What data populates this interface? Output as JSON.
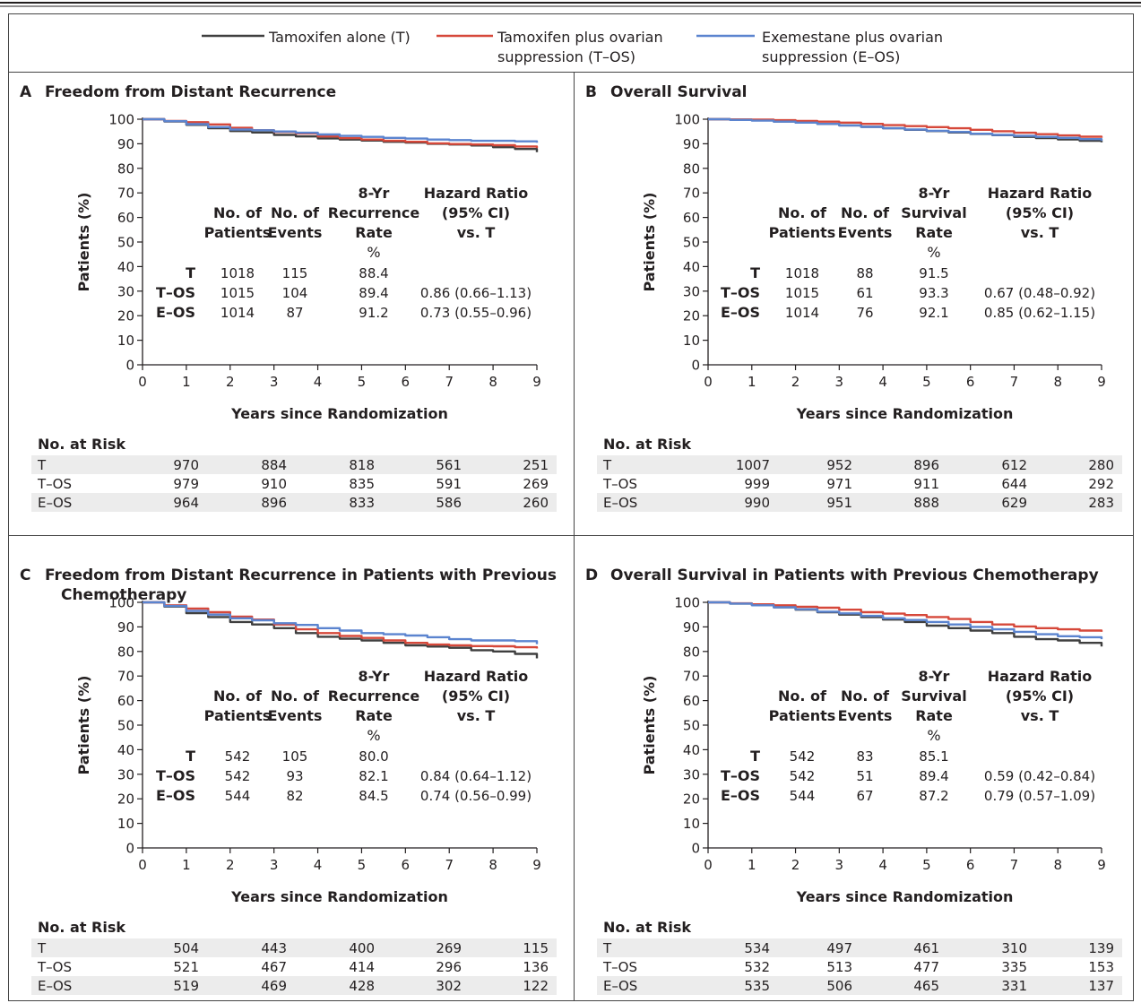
{
  "legend": [
    {
      "key": "T",
      "lines": [
        "Tamoxifen alone (T)"
      ],
      "color": "#3f3f3f"
    },
    {
      "key": "T-OS",
      "lines": [
        "Tamoxifen plus ovarian",
        "suppression (T–OS)"
      ],
      "color": "#d6483a"
    },
    {
      "key": "E-OS",
      "lines": [
        "Exemestane plus ovarian",
        "suppression (E–OS)"
      ],
      "color": "#5b84cf"
    }
  ],
  "chart_data": [
    {
      "type": "line",
      "panel_letter": "A",
      "title_lines": [
        "Freedom from Distant Recurrence"
      ],
      "xlabel": "Years since Randomization",
      "ylabel": "Patients (%)",
      "xlim": [
        0,
        9
      ],
      "ylim": [
        0,
        100
      ],
      "x_ticks": [
        "0",
        "1",
        "2",
        "3",
        "4",
        "5",
        "6",
        "7",
        "8",
        "9"
      ],
      "y_ticks": [
        "0",
        "10",
        "20",
        "30",
        "40",
        "50",
        "60",
        "70",
        "80",
        "90",
        "100"
      ],
      "series": [
        {
          "name": "T",
          "color": "#3f3f3f",
          "x": [
            0,
            0.5,
            1,
            1.5,
            2,
            2.5,
            3,
            3.5,
            4,
            4.5,
            5,
            5.5,
            6,
            6.5,
            7,
            7.5,
            8,
            8.5,
            9
          ],
          "y": [
            100,
            99.1,
            97.7,
            96.3,
            95.2,
            94.6,
            93.6,
            93.0,
            92.2,
            91.7,
            91.3,
            90.8,
            90.5,
            90.0,
            89.7,
            89.3,
            88.6,
            87.9,
            86.6
          ]
        },
        {
          "name": "T-OS",
          "color": "#d6483a",
          "x": [
            0,
            0.5,
            1,
            1.5,
            2,
            2.5,
            3,
            3.5,
            4,
            4.5,
            5,
            5.5,
            6,
            6.5,
            7,
            7.5,
            8,
            8.5,
            9
          ],
          "y": [
            100,
            99.3,
            98.8,
            97.9,
            96.5,
            95.5,
            94.8,
            94.2,
            93.0,
            92.3,
            91.7,
            91.2,
            90.8,
            90.2,
            89.9,
            89.7,
            89.4,
            88.9,
            88.3
          ]
        },
        {
          "name": "E-OS",
          "color": "#5b84cf",
          "x": [
            0,
            0.5,
            1,
            1.5,
            2,
            2.5,
            3,
            3.5,
            4,
            4.5,
            5,
            5.5,
            6,
            6.5,
            7,
            7.5,
            8,
            8.5,
            9
          ],
          "y": [
            100,
            99.2,
            98.0,
            96.8,
            95.8,
            95.5,
            95.0,
            94.5,
            93.8,
            93.2,
            92.8,
            92.4,
            92.1,
            91.7,
            91.5,
            91.2,
            91.2,
            91.0,
            90.4
          ]
        }
      ],
      "stats": {
        "header_lines": [
          [
            "",
            "",
            "8-Yr",
            "Hazard Ratio"
          ],
          [
            "No. of",
            "No. of",
            "Recurrence",
            "(95% CI)"
          ],
          [
            "Patients",
            "Events",
            "Rate",
            "vs. T"
          ],
          [
            "",
            "",
            "%",
            ""
          ]
        ],
        "rows": [
          {
            "group": "T",
            "patients": "1018",
            "events": "115",
            "rate": "88.4",
            "hr": ""
          },
          {
            "group": "T–OS",
            "patients": "1015",
            "events": "104",
            "rate": "89.4",
            "hr": "0.86 (0.66–1.13)"
          },
          {
            "group": "E–OS",
            "patients": "1014",
            "events": "87",
            "rate": "91.2",
            "hr": "0.73 (0.55–0.96)"
          }
        ]
      },
      "at_risk": {
        "title": "No. at Risk",
        "rows": [
          {
            "label": "T",
            "values": [
              "970",
              "884",
              "818",
              "561",
              "251"
            ]
          },
          {
            "label": "T–OS",
            "values": [
              "979",
              "910",
              "835",
              "591",
              "269"
            ]
          },
          {
            "label": "E–OS",
            "values": [
              "964",
              "896",
              "833",
              "586",
              "260"
            ]
          }
        ]
      }
    },
    {
      "type": "line",
      "panel_letter": "B",
      "title_lines": [
        "Overall Survival"
      ],
      "xlabel": "Years since Randomization",
      "ylabel": "Patients (%)",
      "xlim": [
        0,
        9
      ],
      "ylim": [
        0,
        100
      ],
      "x_ticks": [
        "0",
        "1",
        "2",
        "3",
        "4",
        "5",
        "6",
        "7",
        "8",
        "9"
      ],
      "y_ticks": [
        "0",
        "10",
        "20",
        "30",
        "40",
        "50",
        "60",
        "70",
        "80",
        "90",
        "100"
      ],
      "series": [
        {
          "name": "T",
          "color": "#3f3f3f",
          "x": [
            0,
            0.5,
            1,
            1.5,
            2,
            2.5,
            3,
            3.5,
            4,
            4.5,
            5,
            5.5,
            6,
            6.5,
            7,
            7.5,
            8,
            8.5,
            9
          ],
          "y": [
            100,
            99.8,
            99.6,
            99.1,
            98.6,
            98.1,
            97.5,
            96.9,
            96.3,
            95.7,
            95.2,
            94.6,
            94.0,
            93.5,
            92.8,
            92.3,
            91.8,
            91.2,
            90.6
          ]
        },
        {
          "name": "T-OS",
          "color": "#d6483a",
          "x": [
            0,
            0.5,
            1,
            1.5,
            2,
            2.5,
            3,
            3.5,
            4,
            4.5,
            5,
            5.5,
            6,
            6.5,
            7,
            7.5,
            8,
            8.5,
            9
          ],
          "y": [
            100,
            99.9,
            99.8,
            99.6,
            99.3,
            99.0,
            98.6,
            98.1,
            97.6,
            97.2,
            96.8,
            96.3,
            95.7,
            95.1,
            94.5,
            93.9,
            93.4,
            92.9,
            92.4
          ]
        },
        {
          "name": "E-OS",
          "color": "#5b84cf",
          "x": [
            0,
            0.5,
            1,
            1.5,
            2,
            2.5,
            3,
            3.5,
            4,
            4.5,
            5,
            5.5,
            6,
            6.5,
            7,
            7.5,
            8,
            8.5,
            9
          ],
          "y": [
            100,
            99.7,
            99.4,
            99.0,
            98.6,
            98.1,
            97.5,
            96.9,
            96.3,
            95.8,
            95.3,
            94.8,
            94.1,
            93.6,
            93.2,
            92.8,
            92.4,
            91.9,
            91.2
          ]
        }
      ],
      "stats": {
        "header_lines": [
          [
            "",
            "",
            "8-Yr",
            "Hazard Ratio"
          ],
          [
            "No. of",
            "No. of",
            "Survival",
            "(95% CI)"
          ],
          [
            "Patients",
            "Events",
            "Rate",
            "vs. T"
          ],
          [
            "",
            "",
            "%",
            ""
          ]
        ],
        "rows": [
          {
            "group": "T",
            "patients": "1018",
            "events": "88",
            "rate": "91.5",
            "hr": ""
          },
          {
            "group": "T–OS",
            "patients": "1015",
            "events": "61",
            "rate": "93.3",
            "hr": "0.67 (0.48–0.92)"
          },
          {
            "group": "E–OS",
            "patients": "1014",
            "events": "76",
            "rate": "92.1",
            "hr": "0.85 (0.62–1.15)"
          }
        ]
      },
      "at_risk": {
        "title": "No. at Risk",
        "rows": [
          {
            "label": "T",
            "values": [
              "1007",
              "952",
              "896",
              "612",
              "280"
            ]
          },
          {
            "label": "T–OS",
            "values": [
              "999",
              "971",
              "911",
              "644",
              "292"
            ]
          },
          {
            "label": "E–OS",
            "values": [
              "990",
              "951",
              "888",
              "629",
              "283"
            ]
          }
        ]
      }
    },
    {
      "type": "line",
      "panel_letter": "C",
      "title_lines": [
        "Freedom from Distant Recurrence in Patients with Previous",
        "Chemotherapy"
      ],
      "xlabel": "Years since Randomization",
      "ylabel": "Patients (%)",
      "xlim": [
        0,
        9
      ],
      "ylim": [
        0,
        100
      ],
      "x_ticks": [
        "0",
        "1",
        "2",
        "3",
        "4",
        "5",
        "6",
        "7",
        "8",
        "9"
      ],
      "y_ticks": [
        "0",
        "10",
        "20",
        "30",
        "40",
        "50",
        "60",
        "70",
        "80",
        "90",
        "100"
      ],
      "series": [
        {
          "name": "T",
          "color": "#3f3f3f",
          "x": [
            0,
            0.5,
            1,
            1.5,
            2,
            2.5,
            3,
            3.5,
            4,
            4.5,
            5,
            5.5,
            6,
            6.5,
            7,
            7.5,
            8,
            8.5,
            9
          ],
          "y": [
            100,
            98.3,
            95.6,
            94.0,
            92.0,
            91.0,
            89.5,
            87.5,
            86.0,
            85.2,
            84.5,
            83.5,
            82.5,
            82.0,
            81.5,
            80.5,
            80.0,
            79.0,
            77.2
          ]
        },
        {
          "name": "T-OS",
          "color": "#d6483a",
          "x": [
            0,
            0.5,
            1,
            1.5,
            2,
            2.5,
            3,
            3.5,
            4,
            4.5,
            5,
            5.5,
            6,
            6.5,
            7,
            7.5,
            8,
            8.5,
            9
          ],
          "y": [
            100,
            98.8,
            97.5,
            96.0,
            94.2,
            93.0,
            91.0,
            89.0,
            87.5,
            86.3,
            85.5,
            84.5,
            83.5,
            82.8,
            82.5,
            82.2,
            82.1,
            81.7,
            81.2
          ]
        },
        {
          "name": "E-OS",
          "color": "#5b84cf",
          "x": [
            0,
            0.5,
            1,
            1.5,
            2,
            2.5,
            3,
            3.5,
            4,
            4.5,
            5,
            5.5,
            6,
            6.5,
            7,
            7.5,
            8,
            8.5,
            9
          ],
          "y": [
            100,
            98.5,
            96.5,
            95.0,
            93.5,
            92.7,
            91.5,
            90.8,
            89.5,
            88.5,
            87.5,
            87.0,
            86.5,
            85.8,
            85.0,
            84.5,
            84.5,
            84.2,
            83.0
          ]
        }
      ],
      "stats": {
        "header_lines": [
          [
            "",
            "",
            "8-Yr",
            "Hazard Ratio"
          ],
          [
            "No. of",
            "No. of",
            "Recurrence",
            "(95% CI)"
          ],
          [
            "Patients",
            "Events",
            "Rate",
            "vs. T"
          ],
          [
            "",
            "",
            "%",
            ""
          ]
        ],
        "rows": [
          {
            "group": "T",
            "patients": "542",
            "events": "105",
            "rate": "80.0",
            "hr": ""
          },
          {
            "group": "T–OS",
            "patients": "542",
            "events": "93",
            "rate": "82.1",
            "hr": "0.84 (0.64–1.12)"
          },
          {
            "group": "E–OS",
            "patients": "544",
            "events": "82",
            "rate": "84.5",
            "hr": "0.74 (0.56–0.99)"
          }
        ]
      },
      "at_risk": {
        "title": "No. at Risk",
        "rows": [
          {
            "label": "T",
            "values": [
              "504",
              "443",
              "400",
              "269",
              "115"
            ]
          },
          {
            "label": "T–OS",
            "values": [
              "521",
              "467",
              "414",
              "296",
              "136"
            ]
          },
          {
            "label": "E–OS",
            "values": [
              "519",
              "469",
              "428",
              "302",
              "122"
            ]
          }
        ]
      }
    },
    {
      "type": "line",
      "panel_letter": "D",
      "title_lines": [
        "Overall Survival in Patients with Previous Chemotherapy"
      ],
      "xlabel": "Years since Randomization",
      "ylabel": "Patients (%)",
      "xlim": [
        0,
        9
      ],
      "ylim": [
        0,
        100
      ],
      "x_ticks": [
        "0",
        "1",
        "2",
        "3",
        "4",
        "5",
        "6",
        "7",
        "8",
        "9"
      ],
      "y_ticks": [
        "0",
        "10",
        "20",
        "30",
        "40",
        "50",
        "60",
        "70",
        "80",
        "90",
        "100"
      ],
      "series": [
        {
          "name": "T",
          "color": "#3f3f3f",
          "x": [
            0,
            0.5,
            1,
            1.5,
            2,
            2.5,
            3,
            3.5,
            4,
            4.5,
            5,
            5.5,
            6,
            6.5,
            7,
            7.5,
            8,
            8.5,
            9
          ],
          "y": [
            100,
            99.5,
            99.0,
            98.0,
            97.0,
            96.0,
            95.0,
            94.0,
            93.0,
            92.0,
            90.5,
            89.5,
            88.5,
            87.5,
            86.0,
            85.0,
            84.5,
            83.5,
            82.0
          ]
        },
        {
          "name": "T-OS",
          "color": "#d6483a",
          "x": [
            0,
            0.5,
            1,
            1.5,
            2,
            2.5,
            3,
            3.5,
            4,
            4.5,
            5,
            5.5,
            6,
            6.5,
            7,
            7.5,
            8,
            8.5,
            9
          ],
          "y": [
            100,
            99.6,
            99.2,
            98.8,
            98.2,
            97.8,
            97.0,
            96.0,
            95.4,
            94.8,
            94.0,
            93.2,
            92.0,
            91.0,
            90.2,
            89.5,
            89.0,
            88.5,
            88.0
          ]
        },
        {
          "name": "E-OS",
          "color": "#5b84cf",
          "x": [
            0,
            0.5,
            1,
            1.5,
            2,
            2.5,
            3,
            3.5,
            4,
            4.5,
            5,
            5.5,
            6,
            6.5,
            7,
            7.5,
            8,
            8.5,
            9
          ],
          "y": [
            100,
            99.5,
            98.8,
            98.0,
            97.2,
            96.2,
            95.5,
            94.5,
            93.5,
            92.8,
            92.0,
            91.0,
            90.0,
            89.0,
            88.0,
            87.0,
            86.2,
            85.8,
            85.0
          ]
        }
      ],
      "stats": {
        "header_lines": [
          [
            "",
            "",
            "8-Yr",
            "Hazard Ratio"
          ],
          [
            "No. of",
            "No. of",
            "Survival",
            "(95% CI)"
          ],
          [
            "Patients",
            "Events",
            "Rate",
            "vs. T"
          ],
          [
            "",
            "",
            "%",
            ""
          ]
        ],
        "rows": [
          {
            "group": "T",
            "patients": "542",
            "events": "83",
            "rate": "85.1",
            "hr": ""
          },
          {
            "group": "T–OS",
            "patients": "542",
            "events": "51",
            "rate": "89.4",
            "hr": "0.59 (0.42–0.84)"
          },
          {
            "group": "E–OS",
            "patients": "544",
            "events": "67",
            "rate": "87.2",
            "hr": "0.79 (0.57–1.09)"
          }
        ]
      },
      "at_risk": {
        "title": "No. at Risk",
        "rows": [
          {
            "label": "T",
            "values": [
              "534",
              "497",
              "461",
              "310",
              "139"
            ]
          },
          {
            "label": "T–OS",
            "values": [
              "532",
              "513",
              "477",
              "335",
              "153"
            ]
          },
          {
            "label": "E–OS",
            "values": [
              "535",
              "506",
              "465",
              "331",
              "137"
            ]
          }
        ]
      }
    }
  ]
}
